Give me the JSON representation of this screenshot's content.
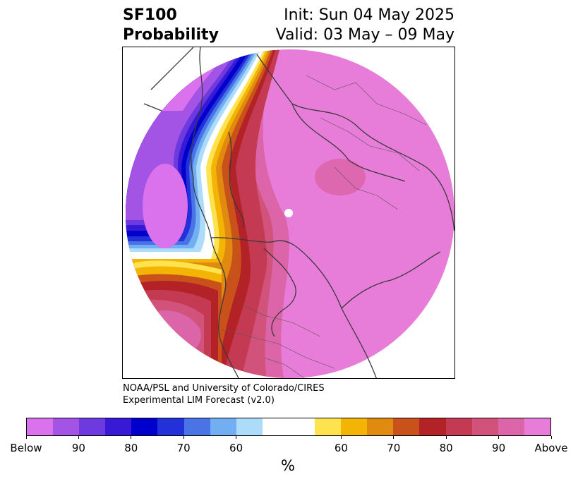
{
  "title": {
    "left_line1": "SF100",
    "left_line2": "Probability",
    "right_line1": "Init: Sun 04 May 2025",
    "right_line2": "Valid: 03 May – 09 May"
  },
  "credit": {
    "line1": "NOAA/PSL and University of Colorado/CIRES",
    "line2": "Experimental LIM Forecast (v2.0)"
  },
  "colorbar": {
    "colors": [
      "#db72ed",
      "#a454e5",
      "#6c3adf",
      "#3819d6",
      "#0000cc",
      "#2231d8",
      "#4a74e6",
      "#71aff2",
      "#addcfb",
      "#ffffff",
      "#ffffff",
      "#fee24e",
      "#f3b406",
      "#e08a0f",
      "#c9521a",
      "#b32226",
      "#c43a52",
      "#d1527a",
      "#dc64a8",
      "#e87dd9"
    ],
    "ticks": [
      "Below",
      "90",
      "80",
      "70",
      "60",
      "60",
      "70",
      "80",
      "90",
      "Above"
    ],
    "unit": "%"
  },
  "map": {
    "projection": "north-polar stereographic",
    "regions": [
      {
        "name": "west-coast-below-normal",
        "category": "below"
      },
      {
        "name": "central-north-america-above-normal",
        "category": "above"
      },
      {
        "name": "eurasia-above-normal",
        "category": "above"
      }
    ]
  }
}
